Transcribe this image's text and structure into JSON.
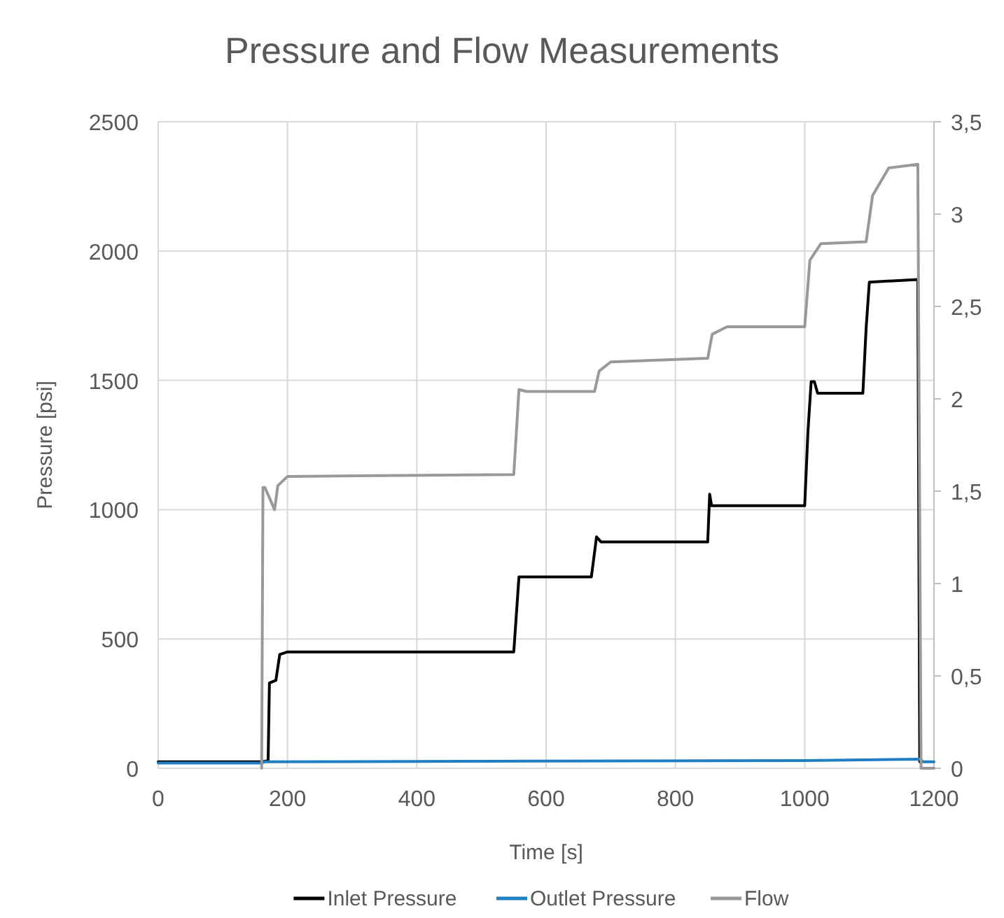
{
  "chart_data": {
    "type": "line",
    "title": "Pressure and Flow Measurements",
    "xlabel": "Time [s]",
    "ylabel": "Pressure [psi]",
    "xlim": [
      0,
      1200
    ],
    "xticks": [
      0,
      200,
      400,
      600,
      800,
      1000,
      1200
    ],
    "ylim": [
      0,
      2500
    ],
    "yticks": [
      0,
      500,
      1000,
      1500,
      2000,
      2500
    ],
    "y2lim": [
      0,
      3.5
    ],
    "y2ticks": [
      {
        "value": 0,
        "label": "0"
      },
      {
        "value": 0.5,
        "label": "0,5"
      },
      {
        "value": 1,
        "label": "1"
      },
      {
        "value": 1.5,
        "label": "1,5"
      },
      {
        "value": 2,
        "label": "2"
      },
      {
        "value": 2.5,
        "label": "2,5"
      },
      {
        "value": 3,
        "label": "3"
      },
      {
        "value": 3.5,
        "label": "3,5"
      }
    ],
    "grid": true,
    "legend": "bottom",
    "marker": "none",
    "line_style": "solid",
    "series": [
      {
        "name": "Inlet Pressure",
        "color": "#000000",
        "x": [
          0,
          162,
          170,
          172,
          182,
          188,
          200,
          550,
          558,
          570,
          670,
          678,
          685,
          850,
          853,
          856,
          1000,
          1005,
          1010,
          1015,
          1020,
          1090,
          1095,
          1100,
          1175,
          1178
        ],
        "values": [
          25,
          25,
          30,
          330,
          340,
          440,
          450,
          450,
          740,
          740,
          740,
          895,
          875,
          875,
          1060,
          1015,
          1015,
          1300,
          1495,
          1495,
          1450,
          1450,
          1700,
          1880,
          1890,
          25
        ]
      },
      {
        "name": "Outlet Pressure",
        "color": "#1f7fc2",
        "x": [
          0,
          160,
          165,
          600,
          1000,
          1180,
          1182,
          1200
        ],
        "values": [
          20,
          20,
          25,
          28,
          30,
          35,
          25,
          25
        ]
      },
      {
        "name": "Flow",
        "color": "#999999",
        "axis": "y2",
        "x": [
          160,
          162,
          165,
          170,
          180,
          185,
          200,
          550,
          558,
          570,
          675,
          682,
          700,
          850,
          857,
          880,
          1000,
          1008,
          1025,
          1095,
          1105,
          1130,
          1175,
          1180,
          1200
        ],
        "values": [
          0,
          1.52,
          1.52,
          1.48,
          1.4,
          1.53,
          1.58,
          1.59,
          2.05,
          2.04,
          2.04,
          2.15,
          2.2,
          2.22,
          2.35,
          2.39,
          2.39,
          2.75,
          2.84,
          2.85,
          3.1,
          3.25,
          3.27,
          0,
          0
        ]
      }
    ]
  }
}
